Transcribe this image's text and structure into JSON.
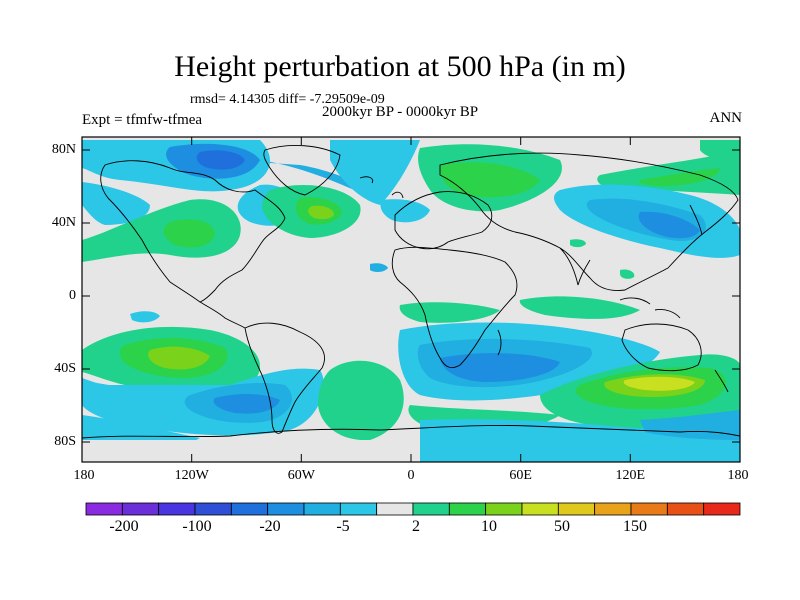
{
  "title": "Height perturbation at 500 hPa (in m)",
  "stats": "rmsd= 4.14305 diff= -7.29509e-09",
  "period": "2000kyr BP - 0000kyr BP",
  "experiment": "Expt = tfmfw-tfmea",
  "season": "ANN",
  "lat_labels": [
    "80N",
    "40N",
    "0",
    "40S",
    "80S"
  ],
  "lon_labels": [
    "180",
    "120W",
    "60W",
    "0",
    "60E",
    "120E",
    "180"
  ],
  "colorbar": {
    "colors": [
      "#8a2be2",
      "#6a2fd8",
      "#4a36e0",
      "#2f4fd6",
      "#1f6fdc",
      "#1d8ee0",
      "#21aee0",
      "#2cc6e6",
      "#e6e6e6",
      "#21d28c",
      "#2bd24a",
      "#7ad21a",
      "#c9e020",
      "#e0c81c",
      "#e8a31a",
      "#e87a18",
      "#e85016",
      "#e8281a"
    ],
    "labels": [
      "-200",
      "-100",
      "-20",
      "-5",
      "2",
      "10",
      "50",
      "150"
    ]
  }
}
